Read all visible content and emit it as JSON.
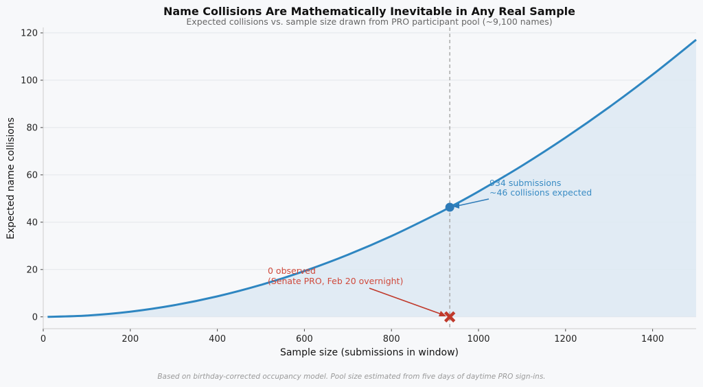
{
  "chart_data": {
    "type": "line",
    "title": "Name Collisions Are Mathematically Inevitable in Any Real Sample",
    "subtitle": "Expected collisions vs. sample size drawn from PRO participant pool (~9,100 names)",
    "xlabel": "Sample size (submissions in window)",
    "ylabel": "Expected name collisions",
    "xlim": [
      0,
      1500
    ],
    "ylim": [
      -5,
      122.3
    ],
    "xticks": [
      0,
      200,
      400,
      600,
      800,
      1000,
      1200,
      1400
    ],
    "yticks": [
      0,
      20,
      40,
      60,
      80,
      100,
      120
    ],
    "grid": true,
    "series": [
      {
        "name": "Expected collisions",
        "color": "#2e86c1",
        "x": [
          10,
          100,
          200,
          300,
          400,
          500,
          600,
          700,
          800,
          900,
          934,
          1000,
          1100,
          1200,
          1300,
          1400,
          1500
        ],
        "y": [
          0.005,
          0.55,
          2.18,
          4.89,
          8.66,
          13.49,
          19.35,
          26.25,
          34.15,
          43.08,
          46.33,
          52.99,
          63.88,
          75.76,
          88.59,
          102.37,
          117.1
        ]
      }
    ],
    "reference_line_x": 934,
    "expected_point": {
      "x": 934,
      "y": 46.33,
      "color": "#2e7bb8"
    },
    "observed_point": {
      "x": 934,
      "y": 0,
      "color": "#c0392b"
    },
    "annotations": {
      "expected_line1": "934 submissions",
      "expected_line2": "~46 collisions expected",
      "observed_line1": "0 observed",
      "observed_line2": "(Senate PRO, Feb 20 overnight)"
    },
    "footnote": "Based on birthday-corrected occupancy model. Pool size estimated from five days of daytime PRO sign-ins."
  }
}
